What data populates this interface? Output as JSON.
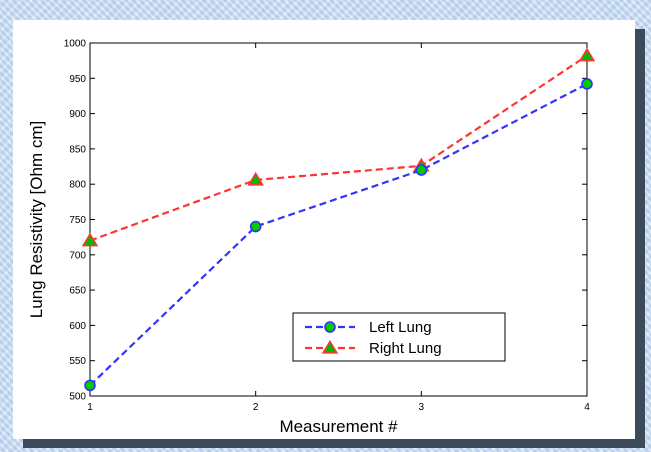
{
  "chart_data": {
    "type": "line",
    "title": "",
    "xlabel": "Measurement #",
    "ylabel": "Lung Resistivity [Ohm cm]",
    "x": [
      1,
      2,
      3,
      4
    ],
    "xlim": [
      1,
      4
    ],
    "ylim": [
      500,
      1000
    ],
    "xticks": [
      1,
      2,
      3,
      4
    ],
    "yticks": [
      500,
      550,
      600,
      650,
      700,
      750,
      800,
      850,
      900,
      950,
      1000
    ],
    "grid": false,
    "legend_position": "lower-right",
    "series": [
      {
        "name": "Left Lung",
        "values": [
          515,
          740,
          820,
          942
        ],
        "color": "#3333ff",
        "marker": "circle",
        "marker_fill": "#00cc00",
        "line_style": "dashed"
      },
      {
        "name": "Right Lung",
        "values": [
          720,
          806,
          826,
          982
        ],
        "color": "#ff3333",
        "marker": "triangle",
        "marker_fill": "#00bb00",
        "line_style": "dashed"
      }
    ]
  }
}
